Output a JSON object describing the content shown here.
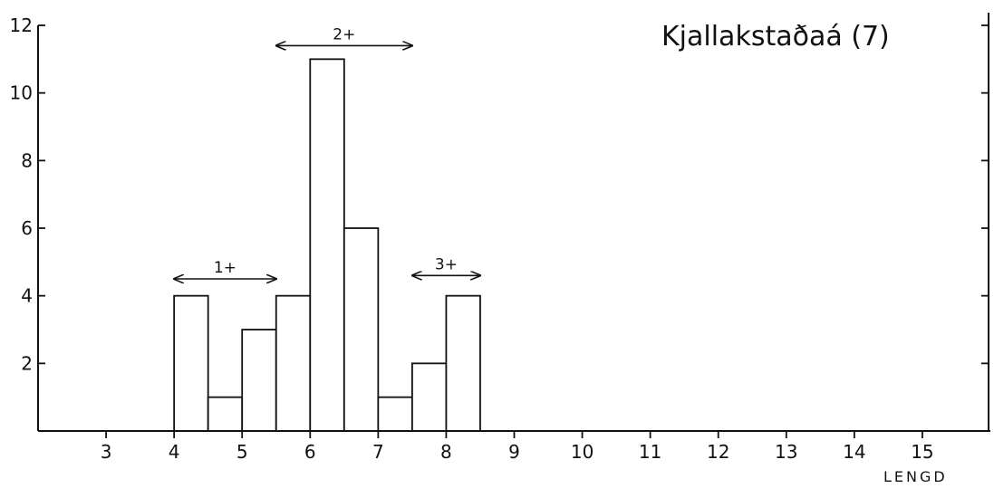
{
  "chart_data": {
    "type": "bar",
    "title": "Kjallakstaðaá (7)",
    "xlabel": "LENGD",
    "ylabel": "",
    "xlim": [
      2,
      16
    ],
    "ylim": [
      0,
      12
    ],
    "x_ticks": [
      3,
      4,
      5,
      6,
      7,
      8,
      9,
      10,
      11,
      12,
      13,
      14,
      15
    ],
    "y_ticks": [
      2,
      4,
      6,
      8,
      10,
      12
    ],
    "bin_width": 0.5,
    "bins": [
      {
        "x0": 4.0,
        "x1": 4.5,
        "value": 4
      },
      {
        "x0": 4.5,
        "x1": 5.0,
        "value": 1
      },
      {
        "x0": 5.0,
        "x1": 5.5,
        "value": 3
      },
      {
        "x0": 5.5,
        "x1": 6.0,
        "value": 4
      },
      {
        "x0": 6.0,
        "x1": 6.5,
        "value": 11
      },
      {
        "x0": 6.5,
        "x1": 7.0,
        "value": 6
      },
      {
        "x0": 7.0,
        "x1": 7.5,
        "value": 1
      },
      {
        "x0": 7.5,
        "x1": 8.0,
        "value": 2
      },
      {
        "x0": 8.0,
        "x1": 8.5,
        "value": 4
      }
    ],
    "annotations": [
      {
        "label": "1+",
        "x_from": 4.0,
        "x_to": 5.5,
        "y": 4.5
      },
      {
        "label": "2+",
        "x_from": 5.5,
        "x_to": 7.5,
        "y": 11.4
      },
      {
        "label": "3+",
        "x_from": 7.5,
        "x_to": 8.5,
        "y": 4.6
      }
    ],
    "grid": false,
    "legend": "none"
  }
}
